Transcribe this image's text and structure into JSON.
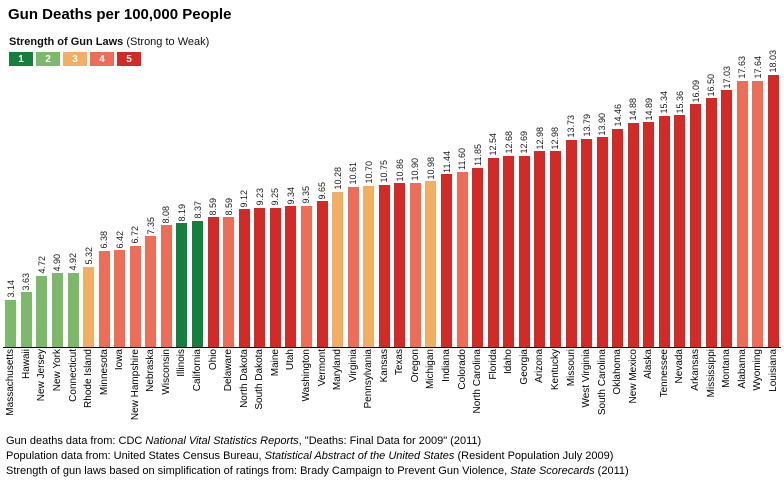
{
  "title": "Gun Deaths per 100,000 People",
  "legend": {
    "title_bold": "Strength of Gun Laws",
    "title_note": "(Strong to Weak)",
    "categories": [
      {
        "label": "1",
        "color": "#157f3d"
      },
      {
        "label": "2",
        "color": "#7cb96a"
      },
      {
        "label": "3",
        "color": "#f2af63"
      },
      {
        "label": "4",
        "color": "#ed6d58"
      },
      {
        "label": "5",
        "color": "#d22b27"
      }
    ]
  },
  "chart_data": {
    "type": "bar",
    "title": "Gun Deaths per 100,000 People",
    "xlabel": "",
    "ylabel": "Gun deaths per 100,000 people",
    "ylim": [
      0,
      18.03
    ],
    "grid": false,
    "legend_position": "top-left",
    "color_encoding": "Strength of Gun Laws (Strong to Weak): 1 = strongest, 5 = weakest",
    "value_labels_shown": true,
    "bars": [
      {
        "state": "Massachusetts",
        "value": 3.14,
        "label": "3.14",
        "law_strength": 2
      },
      {
        "state": "Hawaii",
        "value": 3.63,
        "label": "3.63",
        "law_strength": 2
      },
      {
        "state": "New Jersey",
        "value": 4.72,
        "label": "4.72",
        "law_strength": 2
      },
      {
        "state": "New York",
        "value": 4.9,
        "label": "4.90",
        "law_strength": 2
      },
      {
        "state": "Connecticut",
        "value": 4.92,
        "label": "4.92",
        "law_strength": 2
      },
      {
        "state": "Rhode Island",
        "value": 5.32,
        "label": "5.32",
        "law_strength": 3
      },
      {
        "state": "Minnesota",
        "value": 6.38,
        "label": "6.38",
        "law_strength": 4
      },
      {
        "state": "Iowa",
        "value": 6.42,
        "label": "6.42",
        "law_strength": 4
      },
      {
        "state": "New Hampshire",
        "value": 6.72,
        "label": "6.72",
        "law_strength": 4
      },
      {
        "state": "Nebraska",
        "value": 7.35,
        "label": "7.35",
        "law_strength": 4
      },
      {
        "state": "Wisconsin",
        "value": 8.08,
        "label": "8.08",
        "law_strength": 4
      },
      {
        "state": "Illinois",
        "value": 8.19,
        "label": "8.19",
        "law_strength": 1
      },
      {
        "state": "California",
        "value": 8.37,
        "label": "8.37",
        "law_strength": 1
      },
      {
        "state": "Ohio",
        "value": 8.59,
        "label": "8.59",
        "law_strength": 5
      },
      {
        "state": "Delaware",
        "value": 8.59,
        "label": "8.59",
        "law_strength": 4
      },
      {
        "state": "North Dakota",
        "value": 9.12,
        "label": "9.12",
        "law_strength": 5
      },
      {
        "state": "South Dakota",
        "value": 9.23,
        "label": "9.23",
        "law_strength": 5
      },
      {
        "state": "Maine",
        "value": 9.25,
        "label": "9.25",
        "law_strength": 5
      },
      {
        "state": "Utah",
        "value": 9.34,
        "label": "9.34",
        "law_strength": 5
      },
      {
        "state": "Washington",
        "value": 9.35,
        "label": "9.35",
        "law_strength": 4
      },
      {
        "state": "Vermont",
        "value": 9.65,
        "label": "9.65",
        "law_strength": 5
      },
      {
        "state": "Maryland",
        "value": 10.28,
        "label": "10.28",
        "law_strength": 3
      },
      {
        "state": "Virginia",
        "value": 10.61,
        "label": "10.61",
        "law_strength": 4
      },
      {
        "state": "Pennsylvania",
        "value": 10.7,
        "label": "10.70",
        "law_strength": 3
      },
      {
        "state": "Kansas",
        "value": 10.75,
        "label": "10.75",
        "law_strength": 5
      },
      {
        "state": "Texas",
        "value": 10.86,
        "label": "10.86",
        "law_strength": 5
      },
      {
        "state": "Oregon",
        "value": 10.9,
        "label": "10.90",
        "law_strength": 4
      },
      {
        "state": "Michigan",
        "value": 10.98,
        "label": "10.98",
        "law_strength": 3
      },
      {
        "state": "Indiana",
        "value": 11.44,
        "label": "11.44",
        "law_strength": 5
      },
      {
        "state": "Colorado",
        "value": 11.6,
        "label": "11.60",
        "law_strength": 4
      },
      {
        "state": "North Carolina",
        "value": 11.85,
        "label": "11.85",
        "law_strength": 5
      },
      {
        "state": "Florida",
        "value": 12.54,
        "label": "12.54",
        "law_strength": 5
      },
      {
        "state": "Idaho",
        "value": 12.68,
        "label": "12.68",
        "law_strength": 5
      },
      {
        "state": "Georgia",
        "value": 12.69,
        "label": "12.69",
        "law_strength": 5
      },
      {
        "state": "Arizona",
        "value": 12.98,
        "label": "12.98",
        "law_strength": 5
      },
      {
        "state": "Kentucky",
        "value": 12.98,
        "label": "12.98",
        "law_strength": 5
      },
      {
        "state": "Missouri",
        "value": 13.73,
        "label": "13.73",
        "law_strength": 5
      },
      {
        "state": "West Virginia",
        "value": 13.79,
        "label": "13.79",
        "law_strength": 5
      },
      {
        "state": "South Carolina",
        "value": 13.9,
        "label": "13.90",
        "law_strength": 5
      },
      {
        "state": "Oklahoma",
        "value": 14.46,
        "label": "14.46",
        "law_strength": 5
      },
      {
        "state": "New Mexico",
        "value": 14.88,
        "label": "14.88",
        "law_strength": 5
      },
      {
        "state": "Alaska",
        "value": 14.89,
        "label": "14.89",
        "law_strength": 5
      },
      {
        "state": "Tennessee",
        "value": 15.34,
        "label": "15.34",
        "law_strength": 5
      },
      {
        "state": "Nevada",
        "value": 15.36,
        "label": "15.36",
        "law_strength": 5
      },
      {
        "state": "Arkansas",
        "value": 16.09,
        "label": "16.09",
        "law_strength": 5
      },
      {
        "state": "Mississippi",
        "value": 16.5,
        "label": "16.50",
        "law_strength": 5
      },
      {
        "state": "Montana",
        "value": 17.03,
        "label": "17.03",
        "law_strength": 5
      },
      {
        "state": "Alabama",
        "value": 17.63,
        "label": "17.63",
        "law_strength": 4
      },
      {
        "state": "Wyoming",
        "value": 17.64,
        "label": "17.64",
        "law_strength": 4
      },
      {
        "state": "Louisiana",
        "value": 18.03,
        "label": "18.03",
        "law_strength": 5
      }
    ]
  },
  "footnotes": [
    {
      "parts": [
        {
          "text": "Gun deaths data from: CDC "
        },
        {
          "text": "National Vital Statistics Reports",
          "italic": true
        },
        {
          "text": ",  \"Deaths: Final Data for 2009\" (2011)"
        }
      ]
    },
    {
      "parts": [
        {
          "text": "Population data from: United States Census Bureau, "
        },
        {
          "text": "Statistical Abstract of the United States",
          "italic": true
        },
        {
          "text": "  (Resident Population July 2009)"
        }
      ]
    },
    {
      "parts": [
        {
          "text": "Strength of gun laws based on simplification of ratings from: Brady Campaign to Prevent Gun Violence, "
        },
        {
          "text": "State Scorecards",
          "italic": true
        },
        {
          "text": " (2011)"
        }
      ]
    }
  ]
}
